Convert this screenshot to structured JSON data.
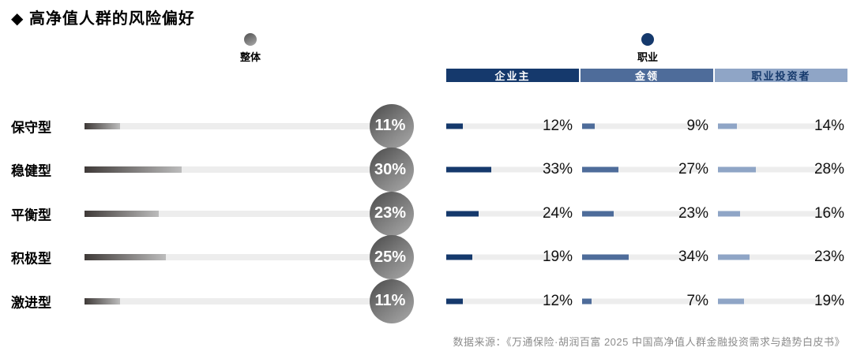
{
  "title": "◆ 高净值人群的风险偏好",
  "legend": {
    "overall": "整体",
    "occupation": "职业"
  },
  "occupations": [
    "企业主",
    "金领",
    "职业投资者"
  ],
  "rows": [
    {
      "label": "保守型",
      "overall": "11%",
      "values": [
        "12%",
        "9%",
        "14%"
      ]
    },
    {
      "label": "稳健型",
      "overall": "30%",
      "values": [
        "33%",
        "27%",
        "28%"
      ]
    },
    {
      "label": "平衡型",
      "overall": "23%",
      "values": [
        "24%",
        "23%",
        "16%"
      ]
    },
    {
      "label": "积极型",
      "overall": "25%",
      "values": [
        "19%",
        "34%",
        "23%"
      ]
    },
    {
      "label": "激进型",
      "overall": "11%",
      "values": [
        "12%",
        "7%",
        "19%"
      ]
    }
  ],
  "source": "数据来源：《万通保险·胡润百富 2025 中国高净值人群金融投资需求与趋势白皮书》",
  "colors": {
    "navy": "#15396c",
    "medium_blue": "#4e6c9a",
    "light_blue": "#8fa5c6",
    "gray_bar_dark": "#3f3a38",
    "gray_bar_light": "#bcbcbc",
    "track": "#ededed",
    "source_text": "#8c8c8c"
  },
  "chart_data": {
    "type": "bar",
    "title": "高净值人群的风险偏好",
    "categories": [
      "保守型",
      "稳健型",
      "平衡型",
      "积极型",
      "激进型"
    ],
    "series": [
      {
        "name": "整体",
        "values": [
          11,
          30,
          23,
          25,
          11
        ]
      },
      {
        "name": "企业主",
        "values": [
          12,
          33,
          24,
          19,
          12
        ]
      },
      {
        "name": "金领",
        "values": [
          9,
          27,
          23,
          34,
          7
        ]
      },
      {
        "name": "职业投资者",
        "values": [
          14,
          28,
          16,
          23,
          19
        ]
      }
    ],
    "unit": "%",
    "orientation": "horizontal",
    "legend_position": "top",
    "grid": false,
    "source": "数据来源：《万通保险·胡润百富 2025 中国高净值人群金融投资需求与趋势白皮书》"
  }
}
